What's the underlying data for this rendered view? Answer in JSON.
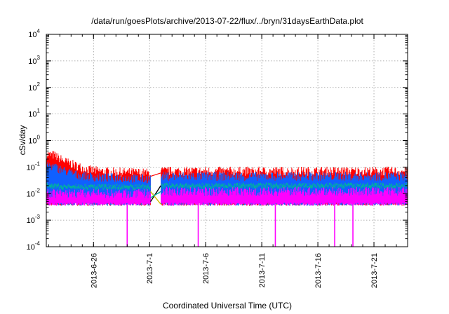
{
  "chart_data": {
    "type": "line",
    "title": "/data/run/goesPlots/archive/2013-07-22/flux/../bryn/31daysEarthData.plot",
    "xlabel": "Coordinated Universal Time (UTC)",
    "ylabel": "cSv/day",
    "y_scale": "log",
    "ylim": [
      0.0001,
      10000
    ],
    "xlim": [
      "2013-06-21T19:00",
      "2013-07-24T00:00"
    ],
    "grid": true,
    "legend": "none",
    "y_ticks": [
      {
        "base": "10",
        "exp": "-4",
        "value": 0.0001
      },
      {
        "base": "10",
        "exp": "-3",
        "value": 0.001
      },
      {
        "base": "10",
        "exp": "-2",
        "value": 0.01
      },
      {
        "base": "10",
        "exp": "-1",
        "value": 0.1
      },
      {
        "base": "10",
        "exp": "0",
        "value": 1
      },
      {
        "base": "10",
        "exp": "1",
        "value": 10
      },
      {
        "base": "10",
        "exp": "2",
        "value": 100
      },
      {
        "base": "10",
        "exp": "3",
        "value": 1000
      },
      {
        "base": "10",
        "exp": "4",
        "value": 10000
      }
    ],
    "x_ticks": [
      "2013-6-26",
      "2013-7-1",
      "2013-7-6",
      "2013-7-11",
      "2013-7-16",
      "2013-7-21"
    ],
    "data_gap": [
      "2013-07-01T02:00",
      "2013-07-02T00:00"
    ],
    "series": [
      {
        "color": "#ff0000",
        "x": [
          "2013-06-21T19:00",
          "2013-06-22T12:00",
          "2013-06-23T12:00",
          "2013-06-24T12:00",
          "2013-06-25T12:00",
          "2013-06-26T12:00",
          "2013-06-28T00:00",
          "2013-07-01T02:00",
          "2013-07-02T00:00",
          "2013-07-10T00:00",
          "2013-07-18T00:00",
          "2013-07-24T00:00"
        ],
        "y": [
          0.3,
          0.28,
          0.16,
          0.11,
          0.08,
          0.07,
          0.065,
          0.06,
          0.07,
          0.07,
          0.07,
          0.07
        ]
      },
      {
        "color": "#1060ff",
        "x": [
          "2013-06-21T19:00",
          "2013-06-22T12:00",
          "2013-06-23T12:00",
          "2013-06-24T12:00",
          "2013-06-25T12:00",
          "2013-06-26T12:00",
          "2013-06-28T00:00",
          "2013-07-01T02:00",
          "2013-07-02T00:00",
          "2013-07-10T00:00",
          "2013-07-18T00:00",
          "2013-07-24T00:00"
        ],
        "y": [
          0.12,
          0.1,
          0.07,
          0.05,
          0.045,
          0.04,
          0.04,
          0.035,
          0.045,
          0.045,
          0.045,
          0.045
        ]
      },
      {
        "color": "#00b0a0",
        "x": [
          "2013-06-21T19:00",
          "2013-06-23T12:00",
          "2013-06-25T12:00",
          "2013-06-28T00:00",
          "2013-07-01T02:00",
          "2013-07-02T00:00",
          "2013-07-24T00:00"
        ],
        "y": [
          0.022,
          0.02,
          0.02,
          0.02,
          0.02,
          0.022,
          0.022
        ]
      },
      {
        "color": "#ff00ff",
        "x": [
          "2013-06-21T19:00",
          "2013-06-25T12:00",
          "2013-07-01T02:00",
          "2013-07-02T00:00",
          "2013-07-10T00:00",
          "2013-07-24T00:00"
        ],
        "y": [
          0.01,
          0.01,
          0.01,
          0.012,
          0.012,
          0.012
        ],
        "low": 0.004
      },
      {
        "color": "#000000",
        "x": [
          "2013-07-01T02:00",
          "2013-07-02T00:00"
        ],
        "y": [
          0.005,
          0.02
        ]
      },
      {
        "color": "#d4c000",
        "x": [
          "2013-07-01T02:00",
          "2013-07-02T00:00"
        ],
        "y": [
          0.012,
          0.004
        ]
      }
    ],
    "dropouts": [
      {
        "x": "2013-06-29T00:00",
        "y": 0.0001
      },
      {
        "x": "2013-07-05T08:00",
        "y": 0.0001
      },
      {
        "x": "2013-07-12T05:00",
        "y": 0.0001
      },
      {
        "x": "2013-07-17T12:00",
        "y": 0.0001
      },
      {
        "x": "2013-07-19T03:00",
        "y": 0.0001
      }
    ]
  }
}
